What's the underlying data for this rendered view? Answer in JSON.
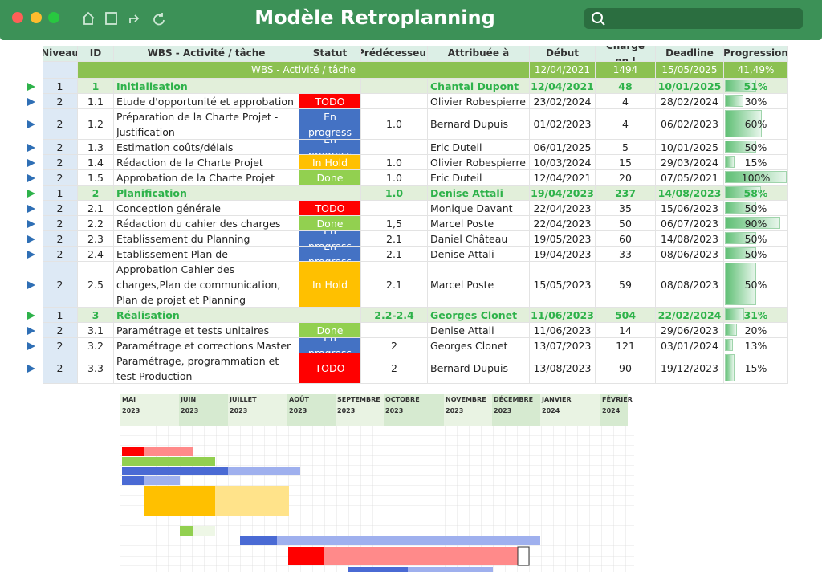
{
  "header": {
    "title": "Modèle Retroplanning"
  },
  "table": {
    "columns": [
      "Niveau",
      "ID",
      "WBS - Activité / tâche",
      "Statut",
      "Prédécesseur",
      "Attribuée à",
      "Début",
      "Charge en J",
      "Deadline",
      "Progression"
    ],
    "summary": {
      "label": "WBS - Activité / tâche",
      "start": "12/04/2021",
      "charge": "1494",
      "deadline": "15/05/2025",
      "progress": "41,49%"
    },
    "status_colors": {
      "TODO": "#ff0000",
      "En progress": "#4472c4",
      "In Hold": "#ffc000",
      "Done": "#92d050"
    },
    "rows": [
      {
        "level": "1",
        "id": "1",
        "task": "Initialisation",
        "assignee": "Chantal Dupont",
        "start": "12/04/2021",
        "charge": "48",
        "deadline": "10/01/2025",
        "progress": "51%"
      },
      {
        "level": "2",
        "id": "1.1",
        "task": "Etude d'opportunité et approbation",
        "status": "TODO",
        "assignee": "Olivier Robespierre",
        "start": "23/02/2024",
        "charge": "4",
        "deadline": "28/02/2024",
        "progress": "30%"
      },
      {
        "level": "2",
        "id": "1.2",
        "task": "Préparation de la Charte Projet - Justification",
        "status": "En progress",
        "predecessor": "1.0",
        "assignee": "Bernard Dupuis",
        "start": "01/02/2023",
        "charge": "4",
        "deadline": "06/02/2023",
        "progress": "60%"
      },
      {
        "level": "2",
        "id": "1.3",
        "task": "Estimation coûts/délais",
        "status": "En progress",
        "assignee": "Eric Duteil",
        "start": "06/01/2025",
        "charge": "5",
        "deadline": "10/01/2025",
        "progress": "50%"
      },
      {
        "level": "2",
        "id": "1.4",
        "task": "Rédaction de la Charte Projet",
        "status": "In Hold",
        "predecessor": "1.0",
        "assignee": "Olivier Robespierre",
        "start": "10/03/2024",
        "charge": "15",
        "deadline": "29/03/2024",
        "progress": "15%"
      },
      {
        "level": "2",
        "id": "1.5",
        "task": "Approbation de la Charte Projet",
        "status": "Done",
        "predecessor": "1.0",
        "assignee": "Eric Duteil",
        "start": "12/04/2021",
        "charge": "20",
        "deadline": "07/05/2021",
        "progress": "100%"
      },
      {
        "level": "1",
        "id": "2",
        "task": "Planification",
        "predecessor": "1.0",
        "assignee": "Denise Attali",
        "start": "19/04/2023",
        "charge": "237",
        "deadline": "14/08/2023",
        "progress": "58%"
      },
      {
        "level": "2",
        "id": "2.1",
        "task": "Conception générale",
        "status": "TODO",
        "assignee": "Monique Davant",
        "start": "22/04/2023",
        "charge": "35",
        "deadline": "15/06/2023",
        "progress": "50%"
      },
      {
        "level": "2",
        "id": "2.2",
        "task": "Rédaction du cahier des charges",
        "status": "Done",
        "predecessor": "1,5",
        "assignee": "Marcel Poste",
        "start": "22/04/2023",
        "charge": "50",
        "deadline": "06/07/2023",
        "progress": "90%"
      },
      {
        "level": "2",
        "id": "2.3",
        "task": "Etablissement du Planning",
        "status": "En progress",
        "predecessor": "2.1",
        "assignee": "Daniel Château",
        "start": "19/05/2023",
        "charge": "60",
        "deadline": "14/08/2023",
        "progress": "50%"
      },
      {
        "level": "2",
        "id": "2.4",
        "task": "Etablissement Plan de",
        "status": "En progress",
        "predecessor": "2.1",
        "assignee": "Denise Attali",
        "start": "19/04/2023",
        "charge": "33",
        "deadline": "08/06/2023",
        "progress": "50%"
      },
      {
        "level": "2",
        "id": "2.5",
        "task": "Approbation Cahier des charges,Plan de communication, Plan de projet et Planning",
        "status": "In Hold",
        "predecessor": "2.1",
        "assignee": "Marcel Poste",
        "start": "15/05/2023",
        "charge": "59",
        "deadline": "08/08/2023",
        "progress": "50%"
      },
      {
        "level": "1",
        "id": "3",
        "task": "Réalisation",
        "predecessor": "2.2-2.4",
        "assignee": "Georges Clonet",
        "start": "11/06/2023",
        "charge": "504",
        "deadline": "22/02/2024",
        "progress": "31%"
      },
      {
        "level": "2",
        "id": "3.1",
        "task": "Paramétrage et tests unitaires",
        "status": "Done",
        "assignee": "Denise Attali",
        "start": "11/06/2023",
        "charge": "14",
        "deadline": "29/06/2023",
        "progress": "20%"
      },
      {
        "level": "2",
        "id": "3.2",
        "task": "Paramétrage et corrections Master",
        "status": "En progress",
        "predecessor": "2",
        "assignee": "Georges Clonet",
        "start": "13/07/2023",
        "charge": "121",
        "deadline": "03/01/2024",
        "progress": "13%"
      },
      {
        "level": "2",
        "id": "3.3",
        "task": "Paramétrage, programmation et test Production",
        "status": "TODO",
        "predecessor": "2",
        "assignee": "Bernard Dupuis",
        "start": "13/08/2023",
        "charge": "90",
        "deadline": "19/12/2023",
        "progress": "15%"
      }
    ]
  },
  "gantt": {
    "months": [
      {
        "month": "MAI",
        "year": "2023"
      },
      {
        "month": "JUIN",
        "year": "2023"
      },
      {
        "month": "JUILLET",
        "year": "2023"
      },
      {
        "month": "AOÛT",
        "year": "2023"
      },
      {
        "month": "SEPTEMBRE",
        "year": "2023"
      },
      {
        "month": "OCTOBRE",
        "year": "2023"
      },
      {
        "month": "NOVEMBRE",
        "year": "2023"
      },
      {
        "month": "DÉCEMBRE",
        "year": "2023"
      },
      {
        "month": "JANVIER",
        "year": "2024"
      },
      {
        "month": "FÉVRIER",
        "year": "2024"
      }
    ]
  }
}
